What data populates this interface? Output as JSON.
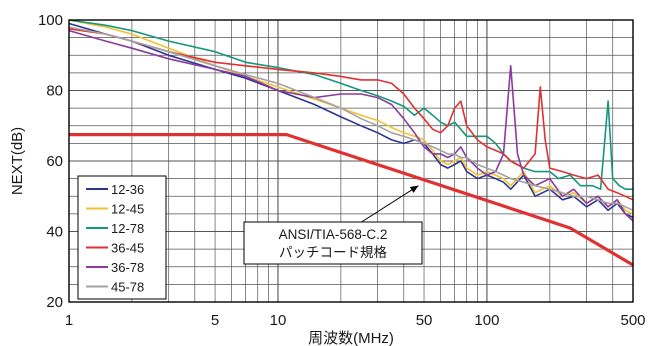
{
  "chart_data": {
    "type": "line",
    "x_scale": "log",
    "xlim": [
      1,
      500
    ],
    "ylim": [
      20,
      100
    ],
    "grid": true,
    "legend_placement": "bottom-left",
    "xlabel": "周波数(MHz)",
    "ylabel": "NEXT(dB)",
    "x_tick_labels": [
      "1",
      "5",
      "10",
      "50",
      "100",
      "500"
    ],
    "y_tick_labels": [
      "20",
      "40",
      "60",
      "80",
      "100"
    ],
    "x_ticks": [
      1,
      5,
      10,
      50,
      100,
      500
    ],
    "y_ticks": [
      20,
      40,
      60,
      80,
      100
    ],
    "annotation": {
      "line1": "ANSI/TIA-568-C.2",
      "line2": "パッチコード規格",
      "arrow_to": [
        47,
        53
      ]
    },
    "series": [
      {
        "name": "12-36",
        "color": "#2d3591",
        "points": [
          [
            1,
            99
          ],
          [
            1.5,
            96
          ],
          [
            2,
            94
          ],
          [
            3,
            90
          ],
          [
            5,
            86
          ],
          [
            7,
            83.5
          ],
          [
            10,
            80
          ],
          [
            15,
            76
          ],
          [
            20,
            72.5
          ],
          [
            25,
            70
          ],
          [
            30,
            68
          ],
          [
            35,
            66
          ],
          [
            40,
            65
          ],
          [
            45,
            66
          ],
          [
            50,
            65
          ],
          [
            55,
            62
          ],
          [
            60,
            59
          ],
          [
            65,
            58
          ],
          [
            70,
            59
          ],
          [
            75,
            60
          ],
          [
            80,
            57
          ],
          [
            90,
            55
          ],
          [
            100,
            56
          ],
          [
            110,
            55
          ],
          [
            120,
            54
          ],
          [
            130,
            52
          ],
          [
            150,
            56
          ],
          [
            170,
            50
          ],
          [
            200,
            52
          ],
          [
            230,
            49
          ],
          [
            260,
            50
          ],
          [
            300,
            47
          ],
          [
            340,
            49
          ],
          [
            380,
            46
          ],
          [
            420,
            48
          ],
          [
            460,
            45
          ],
          [
            500,
            44
          ]
        ]
      },
      {
        "name": "12-45",
        "color": "#f2c12e",
        "points": [
          [
            1,
            100
          ],
          [
            1.5,
            98
          ],
          [
            2,
            96
          ],
          [
            3,
            92
          ],
          [
            5,
            87
          ],
          [
            7,
            84
          ],
          [
            10,
            81
          ],
          [
            15,
            77.5
          ],
          [
            20,
            75
          ],
          [
            25,
            73
          ],
          [
            30,
            71.5
          ],
          [
            35,
            69.5
          ],
          [
            40,
            68
          ],
          [
            45,
            67
          ],
          [
            50,
            66
          ],
          [
            55,
            63
          ],
          [
            60,
            60
          ],
          [
            65,
            59
          ],
          [
            70,
            60
          ],
          [
            75,
            61
          ],
          [
            80,
            58
          ],
          [
            90,
            56
          ],
          [
            100,
            57
          ],
          [
            110,
            56
          ],
          [
            120,
            55
          ],
          [
            130,
            53
          ],
          [
            150,
            57
          ],
          [
            170,
            51
          ],
          [
            200,
            53
          ],
          [
            230,
            50
          ],
          [
            260,
            51
          ],
          [
            300,
            48
          ],
          [
            340,
            50
          ],
          [
            380,
            47
          ],
          [
            420,
            49
          ],
          [
            460,
            46
          ],
          [
            500,
            45
          ]
        ]
      },
      {
        "name": "12-78",
        "color": "#14977a",
        "points": [
          [
            1,
            100
          ],
          [
            1.5,
            98.5
          ],
          [
            2,
            97
          ],
          [
            3,
            94
          ],
          [
            5,
            91
          ],
          [
            7,
            88
          ],
          [
            10,
            86.5
          ],
          [
            15,
            84.5
          ],
          [
            20,
            82
          ],
          [
            25,
            80
          ],
          [
            30,
            78.5
          ],
          [
            35,
            77
          ],
          [
            40,
            75.5
          ],
          [
            45,
            73
          ],
          [
            50,
            75
          ],
          [
            55,
            73
          ],
          [
            60,
            71
          ],
          [
            65,
            70
          ],
          [
            70,
            71
          ],
          [
            75,
            69
          ],
          [
            80,
            67
          ],
          [
            90,
            67
          ],
          [
            100,
            67
          ],
          [
            110,
            65
          ],
          [
            120,
            62
          ],
          [
            130,
            60
          ],
          [
            150,
            58
          ],
          [
            170,
            57
          ],
          [
            200,
            57
          ],
          [
            220,
            55
          ],
          [
            250,
            56
          ],
          [
            280,
            53
          ],
          [
            320,
            53
          ],
          [
            350,
            52
          ],
          [
            380,
            77
          ],
          [
            400,
            55
          ],
          [
            430,
            53
          ],
          [
            460,
            52
          ],
          [
            500,
            52
          ]
        ]
      },
      {
        "name": "36-45",
        "color": "#e03131",
        "points": [
          [
            1,
            97.5
          ],
          [
            1.5,
            96
          ],
          [
            2,
            94
          ],
          [
            3,
            91
          ],
          [
            5,
            88
          ],
          [
            7,
            87
          ],
          [
            10,
            86
          ],
          [
            15,
            85
          ],
          [
            20,
            84
          ],
          [
            25,
            83
          ],
          [
            30,
            83
          ],
          [
            35,
            82
          ],
          [
            40,
            79
          ],
          [
            45,
            75
          ],
          [
            50,
            72
          ],
          [
            55,
            69
          ],
          [
            60,
            68
          ],
          [
            65,
            70
          ],
          [
            70,
            75
          ],
          [
            75,
            77
          ],
          [
            80,
            70
          ],
          [
            90,
            66
          ],
          [
            100,
            64
          ],
          [
            110,
            63
          ],
          [
            120,
            62
          ],
          [
            130,
            60
          ],
          [
            150,
            58
          ],
          [
            170,
            62
          ],
          [
            180,
            81
          ],
          [
            190,
            66
          ],
          [
            200,
            58
          ],
          [
            230,
            57
          ],
          [
            260,
            56
          ],
          [
            300,
            55
          ],
          [
            340,
            56
          ],
          [
            380,
            52
          ],
          [
            420,
            51
          ],
          [
            460,
            50
          ],
          [
            500,
            49
          ]
        ]
      },
      {
        "name": "36-78",
        "color": "#8c3a9e",
        "points": [
          [
            1,
            97
          ],
          [
            1.5,
            94
          ],
          [
            2,
            92
          ],
          [
            3,
            89
          ],
          [
            5,
            86
          ],
          [
            7,
            84
          ],
          [
            10,
            80
          ],
          [
            15,
            78
          ],
          [
            20,
            79
          ],
          [
            25,
            79
          ],
          [
            30,
            78
          ],
          [
            35,
            76
          ],
          [
            40,
            72
          ],
          [
            45,
            68
          ],
          [
            50,
            64
          ],
          [
            55,
            62
          ],
          [
            60,
            62
          ],
          [
            65,
            61
          ],
          [
            70,
            62
          ],
          [
            75,
            64
          ],
          [
            80,
            61
          ],
          [
            90,
            58
          ],
          [
            100,
            56
          ],
          [
            110,
            57
          ],
          [
            120,
            62
          ],
          [
            130,
            87
          ],
          [
            140,
            62
          ],
          [
            150,
            56
          ],
          [
            170,
            53
          ],
          [
            200,
            55
          ],
          [
            230,
            50
          ],
          [
            260,
            52
          ],
          [
            300,
            48
          ],
          [
            340,
            50
          ],
          [
            380,
            47
          ],
          [
            420,
            49
          ],
          [
            460,
            45
          ],
          [
            500,
            43
          ]
        ]
      },
      {
        "name": "45-78",
        "color": "#a3a3a3",
        "points": [
          [
            1,
            98
          ],
          [
            1.5,
            96
          ],
          [
            2,
            94
          ],
          [
            3,
            91
          ],
          [
            5,
            87
          ],
          [
            7,
            84.5
          ],
          [
            10,
            82
          ],
          [
            15,
            78
          ],
          [
            20,
            75
          ],
          [
            25,
            72
          ],
          [
            30,
            70
          ],
          [
            35,
            68
          ],
          [
            40,
            67
          ],
          [
            45,
            66
          ],
          [
            50,
            65
          ],
          [
            55,
            64
          ],
          [
            60,
            63
          ],
          [
            65,
            62
          ],
          [
            70,
            62
          ],
          [
            75,
            61
          ],
          [
            80,
            61
          ],
          [
            90,
            59
          ],
          [
            100,
            58
          ],
          [
            110,
            57
          ],
          [
            120,
            56
          ],
          [
            130,
            55
          ],
          [
            150,
            54
          ],
          [
            170,
            53
          ],
          [
            200,
            52
          ],
          [
            230,
            51
          ],
          [
            260,
            50
          ],
          [
            300,
            50
          ],
          [
            340,
            49
          ],
          [
            380,
            48
          ],
          [
            420,
            48
          ],
          [
            460,
            47
          ],
          [
            500,
            46
          ]
        ]
      },
      {
        "name": "ANSI/TIA-568-C.2",
        "color": "#e03131",
        "width": 3.2,
        "no_legend": true,
        "points": [
          [
            1,
            67.5
          ],
          [
            11,
            67.5
          ],
          [
            250,
            41
          ],
          [
            500,
            30.5
          ]
        ]
      }
    ]
  }
}
